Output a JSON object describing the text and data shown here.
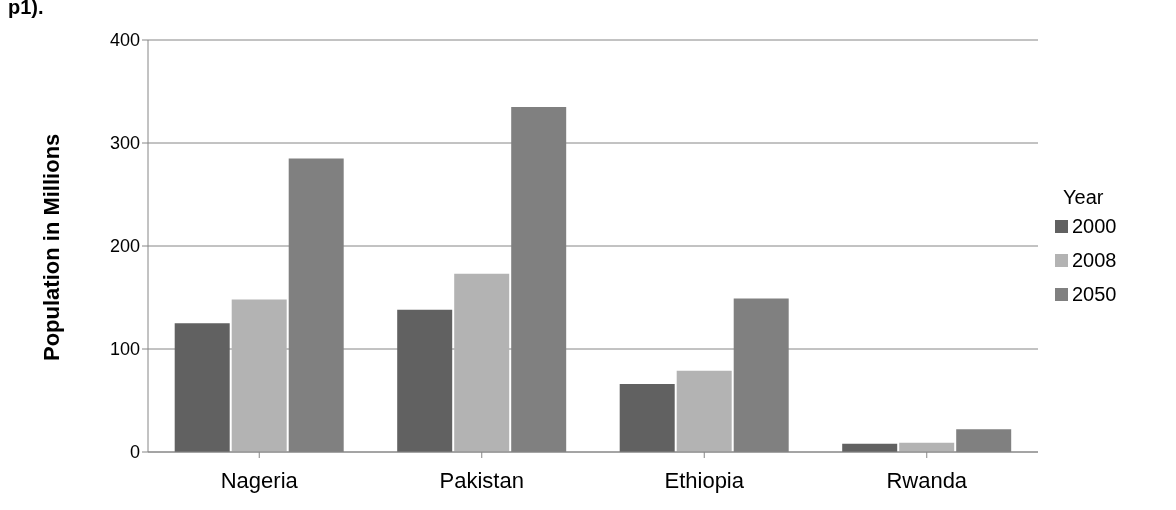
{
  "chart_data": {
    "type": "bar",
    "ylabel": "Population in Millions",
    "legend_title": "Year",
    "annotations": [
      "p1)."
    ],
    "categories": [
      "Nageria",
      "Pakistan",
      "Ethiopia",
      "Rwanda"
    ],
    "series": [
      {
        "name": "2000",
        "color": "#616161",
        "values": [
          125,
          138,
          66,
          8
        ]
      },
      {
        "name": "2008",
        "color": "#b3b3b3",
        "values": [
          148,
          173,
          79,
          9
        ]
      },
      {
        "name": "2050",
        "color": "#808080",
        "values": [
          285,
          335,
          149,
          22
        ]
      }
    ],
    "ylim": [
      0,
      400
    ],
    "yticks": [
      0,
      100,
      200,
      300,
      400
    ],
    "grid": "y",
    "legend": "right"
  }
}
